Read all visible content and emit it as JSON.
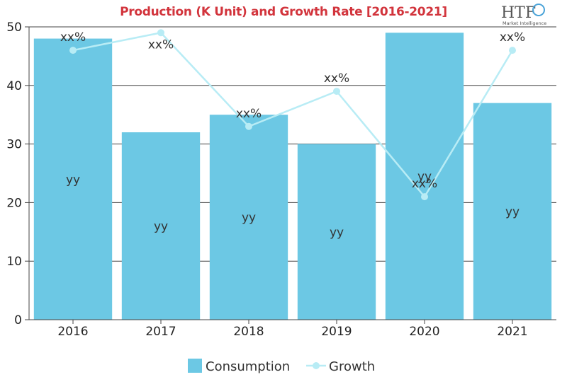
{
  "logo": {
    "main": "HTF",
    "sub": "Market Intelligence"
  },
  "chart_data": {
    "type": "bar",
    "title": "Production (K Unit) and Growth Rate [2016-2021]",
    "categories": [
      "2016",
      "2017",
      "2018",
      "2019",
      "2020",
      "2021"
    ],
    "ylim": [
      0,
      50
    ],
    "yticks": [
      0,
      10,
      20,
      30,
      40,
      50
    ],
    "grid": true,
    "legend_position": "bottom-center",
    "series": [
      {
        "name": "Consumption",
        "type": "bar",
        "color": "#6cc8e4",
        "values": [
          48,
          32,
          35,
          30,
          49,
          37
        ],
        "labels": [
          "yy",
          "yy",
          "yy",
          "yy",
          "yy",
          "yy"
        ]
      },
      {
        "name": "Growth",
        "type": "line",
        "color": "#b8ecf5",
        "values": [
          46,
          49,
          33,
          39,
          21,
          46
        ],
        "labels": [
          "xx%",
          "xx%",
          "xx%",
          "xx%",
          "xx%",
          "xx%"
        ]
      }
    ]
  }
}
